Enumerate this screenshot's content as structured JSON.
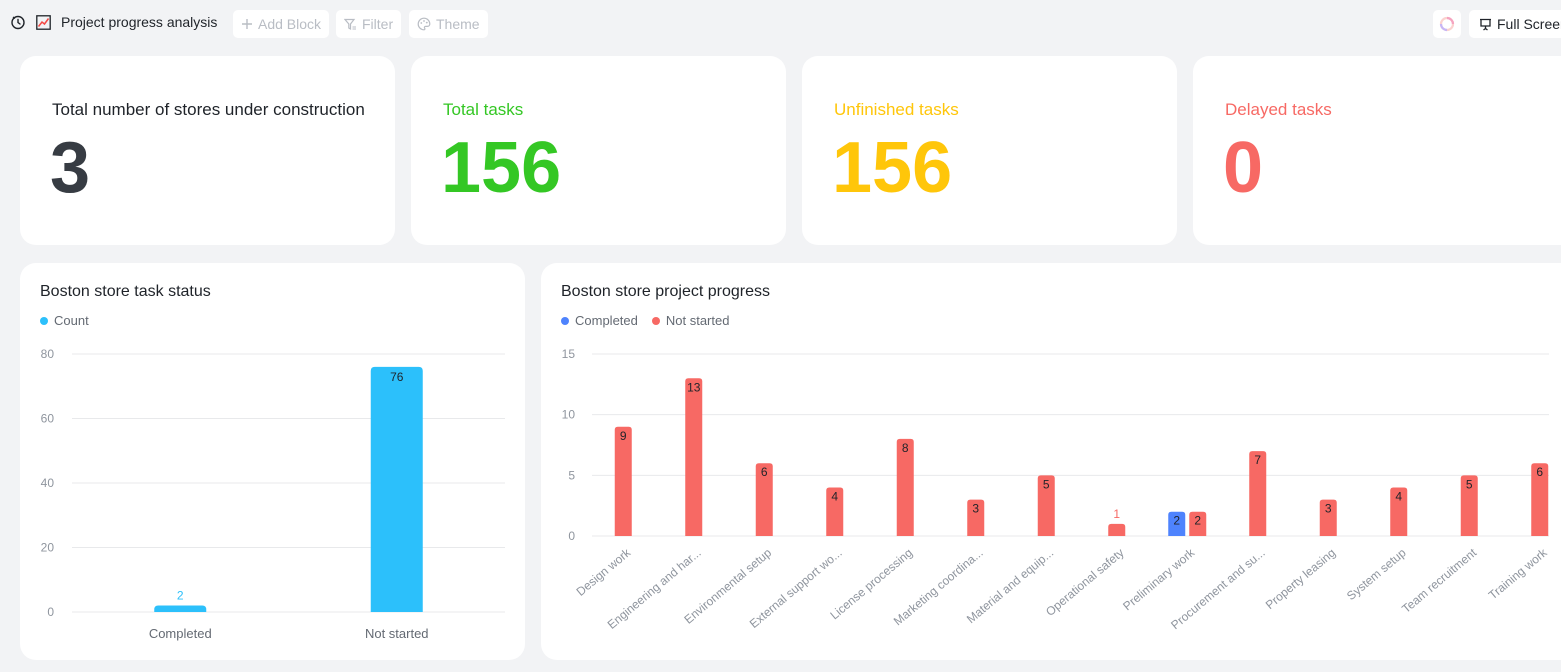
{
  "toolbar": {
    "title": "Project progress analysis",
    "add_block": "Add Block",
    "filter": "Filter",
    "theme": "Theme",
    "full_screen": "Full Screen"
  },
  "kpis": [
    {
      "label": "Total number of stores under construction",
      "value": "3",
      "color": "#373c43"
    },
    {
      "label": "Total tasks",
      "value": "156",
      "color": "#34c724"
    },
    {
      "label": "Unfinished tasks",
      "value": "156",
      "color": "#ffc60a"
    },
    {
      "label": "Delayed tasks",
      "value": "0",
      "color": "#f76964"
    }
  ],
  "charts": {
    "status": {
      "title": "Boston store task status",
      "legend": [
        {
          "name": "Count",
          "color": "#2cc0fb"
        }
      ]
    },
    "progress": {
      "title": "Boston store project progress",
      "legend": [
        {
          "name": "Completed",
          "color": "#4e83fd"
        },
        {
          "name": "Not started",
          "color": "#f76964"
        }
      ]
    }
  },
  "chart_data": [
    {
      "type": "bar",
      "title": "Boston store task status",
      "categories": [
        "Completed",
        "Not started"
      ],
      "series": [
        {
          "name": "Count",
          "values": [
            2,
            76
          ],
          "color": "#2cc0fb"
        }
      ],
      "ylim": [
        0,
        80
      ],
      "yticks": [
        0,
        20,
        40,
        60,
        80
      ],
      "grid": true,
      "legend_position": "top-left"
    },
    {
      "type": "bar",
      "title": "Boston store project progress",
      "categories": [
        "Design work",
        "Engineering and har...",
        "Environmental setup",
        "External support wo...",
        "License processing",
        "Marketing coordina...",
        "Material and equip...",
        "Operational safety",
        "Preliminary work",
        "Procurement and su...",
        "Property leasing",
        "System setup",
        "Team recruitment",
        "Training work"
      ],
      "series": [
        {
          "name": "Completed",
          "values": [
            0,
            0,
            0,
            0,
            0,
            0,
            0,
            0,
            2,
            0,
            0,
            0,
            0,
            0
          ],
          "color": "#4e83fd"
        },
        {
          "name": "Not started",
          "values": [
            9,
            13,
            6,
            4,
            8,
            3,
            5,
            1,
            2,
            7,
            3,
            4,
            5,
            6
          ],
          "color": "#f76964"
        }
      ],
      "ylim": [
        0,
        15
      ],
      "yticks": [
        0,
        5,
        10,
        15
      ],
      "grid": true,
      "legend_position": "top-left"
    }
  ]
}
